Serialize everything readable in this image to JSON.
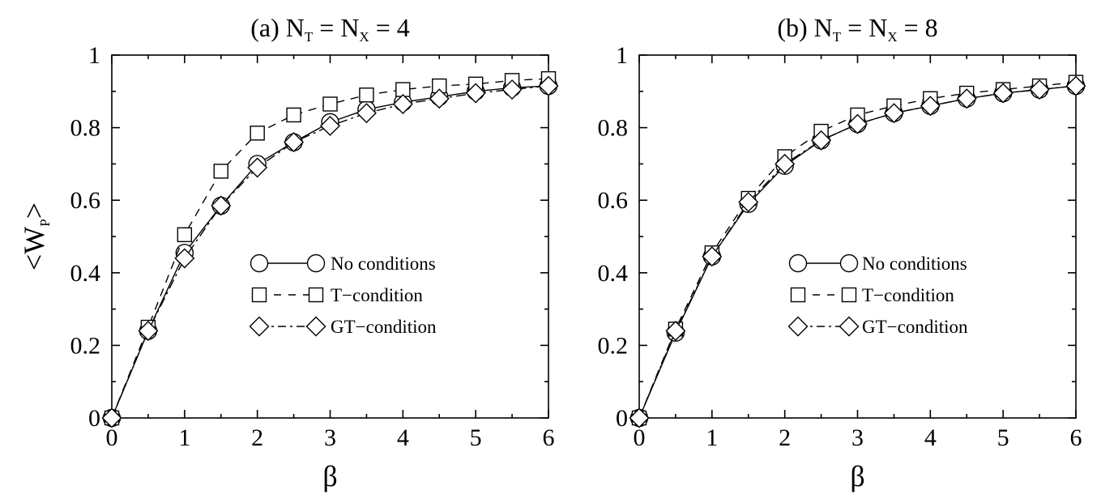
{
  "chart_data": [
    {
      "type": "line",
      "title": {
        "prefix": "(a) N",
        "sub1": "T",
        "mid": " = N",
        "sub2": "X",
        "suffix": " = 4"
      },
      "xlabel": "β",
      "ylabel": {
        "prefix": "<W",
        "sub": "P",
        "suffix": ">"
      },
      "xlim": [
        0,
        6
      ],
      "ylim": [
        0,
        1
      ],
      "xticks": [
        "0",
        "1",
        "2",
        "3",
        "4",
        "5",
        "6"
      ],
      "yticks": [
        "0",
        "0.2",
        "0.4",
        "0.6",
        "0.8",
        "1"
      ],
      "grid": false,
      "legend_position": "center-right",
      "x": [
        0,
        0.5,
        1,
        1.5,
        2,
        2.5,
        3,
        3.5,
        4,
        4.5,
        5,
        5.5,
        6
      ],
      "series": [
        {
          "name": "No conditions",
          "marker": "circle",
          "dash": "solid",
          "values": [
            0.0,
            0.24,
            0.455,
            0.585,
            0.7,
            0.76,
            0.815,
            0.85,
            0.87,
            0.885,
            0.9,
            0.91,
            0.915
          ]
        },
        {
          "name": "T−condition",
          "marker": "square",
          "dash": "dashed",
          "values": [
            0.0,
            0.25,
            0.505,
            0.68,
            0.785,
            0.835,
            0.865,
            0.89,
            0.905,
            0.915,
            0.92,
            0.93,
            0.935
          ]
        },
        {
          "name": "GT−condition",
          "marker": "diamond",
          "dash": "dashdot",
          "values": [
            0.0,
            0.24,
            0.44,
            0.585,
            0.69,
            0.76,
            0.805,
            0.84,
            0.865,
            0.88,
            0.895,
            0.905,
            0.915
          ]
        }
      ]
    },
    {
      "type": "line",
      "title": {
        "prefix": "(b) N",
        "sub1": "T",
        "mid": " = N",
        "sub2": "X",
        "suffix": " = 8"
      },
      "xlabel": "β",
      "ylabel": {
        "prefix": "",
        "sub": "",
        "suffix": ""
      },
      "xlim": [
        0,
        6
      ],
      "ylim": [
        0,
        1
      ],
      "xticks": [
        "0",
        "1",
        "2",
        "3",
        "4",
        "5",
        "6"
      ],
      "yticks": [
        "0",
        "0.2",
        "0.4",
        "0.6",
        "0.8",
        "1"
      ],
      "grid": false,
      "legend_position": "center-right",
      "x": [
        0,
        0.5,
        1,
        1.5,
        2,
        2.5,
        3,
        3.5,
        4,
        4.5,
        5,
        5.5,
        6
      ],
      "series": [
        {
          "name": "No conditions",
          "marker": "circle",
          "dash": "solid",
          "values": [
            0.0,
            0.235,
            0.445,
            0.59,
            0.695,
            0.765,
            0.81,
            0.84,
            0.86,
            0.88,
            0.895,
            0.905,
            0.915
          ]
        },
        {
          "name": "T−condition",
          "marker": "square",
          "dash": "dashed",
          "values": [
            0.0,
            0.245,
            0.455,
            0.605,
            0.72,
            0.79,
            0.835,
            0.86,
            0.88,
            0.895,
            0.905,
            0.915,
            0.925
          ]
        },
        {
          "name": "GT−condition",
          "marker": "diamond",
          "dash": "dashdot",
          "values": [
            0.0,
            0.24,
            0.445,
            0.595,
            0.7,
            0.765,
            0.81,
            0.84,
            0.86,
            0.88,
            0.895,
            0.905,
            0.915
          ]
        }
      ]
    }
  ]
}
